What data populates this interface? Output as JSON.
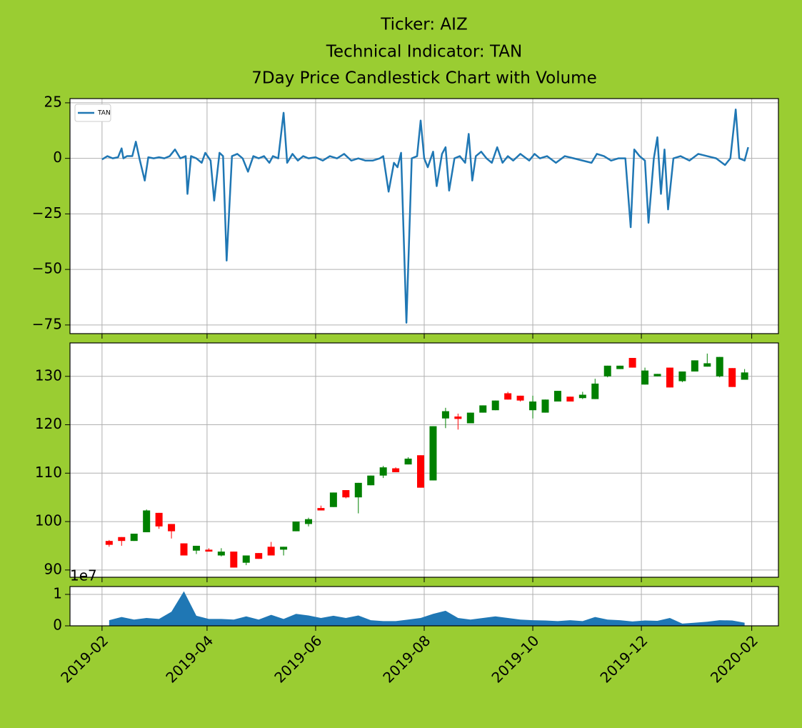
{
  "chart_data": [
    {
      "type": "line",
      "title": [
        "Ticker: AIZ",
        "Technical Indicator: TAN",
        "7Day Price Candlestick Chart with Volume"
      ],
      "series": [
        {
          "name": "TAN",
          "color": "#1f77b4",
          "x": [
            "2019-02-01",
            "2019-02-04",
            "2019-02-07",
            "2019-02-10",
            "2019-02-12",
            "2019-02-13",
            "2019-02-15",
            "2019-02-18",
            "2019-02-20",
            "2019-02-22",
            "2019-02-25",
            "2019-02-27",
            "2019-03-02",
            "2019-03-05",
            "2019-03-08",
            "2019-03-11",
            "2019-03-14",
            "2019-03-17",
            "2019-03-20",
            "2019-03-21",
            "2019-03-23",
            "2019-03-26",
            "2019-03-29",
            "2019-03-31",
            "2019-04-03",
            "2019-04-05",
            "2019-04-08",
            "2019-04-10",
            "2019-04-12",
            "2019-04-15",
            "2019-04-18",
            "2019-04-21",
            "2019-04-24",
            "2019-04-27",
            "2019-04-30",
            "2019-05-03",
            "2019-05-06",
            "2019-05-08",
            "2019-05-11",
            "2019-05-14",
            "2019-05-16",
            "2019-05-19",
            "2019-05-22",
            "2019-05-25",
            "2019-05-28",
            "2019-06-01",
            "2019-06-05",
            "2019-06-09",
            "2019-06-13",
            "2019-06-17",
            "2019-06-21",
            "2019-06-25",
            "2019-06-29",
            "2019-07-03",
            "2019-07-07",
            "2019-07-09",
            "2019-07-12",
            "2019-07-15",
            "2019-07-17",
            "2019-07-19",
            "2019-07-22",
            "2019-07-25",
            "2019-07-28",
            "2019-07-30",
            "2019-08-01",
            "2019-08-03",
            "2019-08-06",
            "2019-08-08",
            "2019-08-11",
            "2019-08-13",
            "2019-08-15",
            "2019-08-18",
            "2019-08-21",
            "2019-08-24",
            "2019-08-26",
            "2019-08-28",
            "2019-08-30",
            "2019-09-02",
            "2019-09-05",
            "2019-09-08",
            "2019-09-11",
            "2019-09-14",
            "2019-09-17",
            "2019-09-20",
            "2019-09-24",
            "2019-09-29",
            "2019-10-02",
            "2019-10-05",
            "2019-10-09",
            "2019-10-14",
            "2019-10-19",
            "2019-10-24",
            "2019-10-29",
            "2019-11-03",
            "2019-11-06",
            "2019-11-10",
            "2019-11-14",
            "2019-11-18",
            "2019-11-22",
            "2019-11-25",
            "2019-11-27",
            "2019-11-30",
            "2019-12-03",
            "2019-12-05",
            "2019-12-08",
            "2019-12-10",
            "2019-12-12",
            "2019-12-14",
            "2019-12-16",
            "2019-12-19",
            "2019-12-23",
            "2019-12-28",
            "2020-01-02",
            "2020-01-07",
            "2020-01-12",
            "2020-01-17",
            "2020-01-20",
            "2020-01-23",
            "2020-01-25",
            "2020-01-28",
            "2020-01-30"
          ],
          "values": [
            -0.5,
            1,
            0,
            0.5,
            4.5,
            0,
            1,
            1,
            7.5,
            0,
            -10,
            0.5,
            0,
            0.5,
            0,
            1,
            4,
            0,
            1,
            -16,
            1,
            0,
            -2,
            2.5,
            -1,
            -19,
            2.5,
            1,
            -46,
            1,
            2,
            0,
            -6,
            1,
            0,
            1,
            -2,
            1,
            0,
            20.5,
            -2,
            2,
            -1,
            1,
            0,
            0.5,
            -1,
            1,
            0,
            2,
            -1,
            0,
            -1,
            -1,
            0,
            1,
            -15,
            -2,
            -4,
            2.5,
            -74,
            0,
            1,
            17,
            0,
            -4,
            3,
            -12.5,
            2,
            5,
            -14.5,
            0,
            1,
            -2,
            11,
            -10,
            1,
            3,
            0,
            -2,
            5,
            -2,
            1,
            -1,
            2,
            -1,
            2,
            0,
            1,
            -2,
            1,
            0,
            -1,
            -2,
            2,
            1,
            -1,
            0,
            0,
            -31,
            4,
            1,
            -1,
            -29,
            0,
            9.5,
            -16,
            4,
            -23,
            0,
            1,
            -1,
            2,
            1,
            0,
            -3,
            0,
            22,
            0,
            -1,
            5
          ]
        }
      ],
      "ylim": [
        -78.9,
        26.9
      ],
      "yticks": [
        25,
        0,
        {
          "value": -25,
          "label": "−25"
        },
        {
          "value": -50,
          "label": "−50"
        },
        {
          "value": -75,
          "label": "−75"
        }
      ],
      "xlim": [
        "2019-01-14",
        "2020-02-16"
      ],
      "xticks": [
        "2019-02",
        "2019-04",
        "2019-06",
        "2019-08",
        "2019-10",
        "2019-12",
        "2020-02"
      ],
      "grid": true,
      "legend": "upper left"
    },
    {
      "type": "candlestick",
      "x": [
        "2019-02-05",
        "2019-02-12",
        "2019-02-19",
        "2019-02-26",
        "2019-03-05",
        "2019-03-12",
        "2019-03-19",
        "2019-03-26",
        "2019-04-02",
        "2019-04-09",
        "2019-04-16",
        "2019-04-23",
        "2019-04-30",
        "2019-05-07",
        "2019-05-14",
        "2019-05-21",
        "2019-05-28",
        "2019-06-04",
        "2019-06-11",
        "2019-06-18",
        "2019-06-25",
        "2019-07-02",
        "2019-07-09",
        "2019-07-16",
        "2019-07-23",
        "2019-07-30",
        "2019-08-06",
        "2019-08-13",
        "2019-08-20",
        "2019-08-27",
        "2019-09-03",
        "2019-09-10",
        "2019-09-17",
        "2019-09-24",
        "2019-10-01",
        "2019-10-08",
        "2019-10-15",
        "2019-10-22",
        "2019-10-29",
        "2019-11-05",
        "2019-11-12",
        "2019-11-19",
        "2019-11-26",
        "2019-12-03",
        "2019-12-10",
        "2019-12-17",
        "2019-12-24",
        "2019-12-31",
        "2020-01-07",
        "2020-01-14",
        "2020-01-21",
        "2020-01-28"
      ],
      "open": [
        96,
        96.8,
        96,
        97.8,
        101.8,
        99.5,
        95.5,
        94,
        94.2,
        93,
        93.8,
        91.5,
        93.5,
        94.8,
        94.2,
        98,
        99.5,
        102.8,
        103,
        106.5,
        105,
        107.5,
        109.5,
        111,
        111.8,
        113.7,
        108.5,
        121.3,
        121.7,
        120.3,
        122.5,
        123,
        126.5,
        126,
        123,
        122.5,
        124.8,
        125.8,
        125.5,
        125.3,
        130,
        131.5,
        133.8,
        128.3,
        130,
        131.8,
        129,
        131,
        132,
        130,
        131.7,
        129.3
      ],
      "high": [
        96.2,
        96.8,
        97.5,
        102.5,
        101.8,
        99.5,
        95.5,
        95,
        94.5,
        94.5,
        93.8,
        93,
        93.5,
        95.8,
        94.8,
        100,
        100.8,
        103.3,
        106,
        106.5,
        108,
        109.5,
        111.5,
        111.2,
        113.3,
        113.7,
        119.7,
        123.5,
        122.3,
        122.5,
        124,
        125,
        126.8,
        126,
        126,
        125.2,
        127,
        125.8,
        126.8,
        129.5,
        132.2,
        132.2,
        133.8,
        131.8,
        130.5,
        131.8,
        131,
        133.3,
        134.7,
        134,
        131.7,
        131.5
      ],
      "low": [
        94.8,
        95,
        96,
        97.8,
        98.5,
        96.5,
        93,
        93.3,
        93.8,
        92.8,
        90.5,
        91,
        92.3,
        93,
        93,
        98,
        99,
        102.3,
        103,
        104.8,
        101.7,
        107.5,
        109,
        110.2,
        111.8,
        107,
        108.5,
        119.3,
        119,
        120.3,
        122.5,
        123,
        125.2,
        124.8,
        121.3,
        122.5,
        124.8,
        124.8,
        125.3,
        125.3,
        129.8,
        131.5,
        131.8,
        128.3,
        130,
        127.7,
        128.8,
        131,
        132,
        129.8,
        127.8,
        129.3
      ],
      "close": [
        95.2,
        96,
        97.5,
        102.3,
        99,
        98,
        93,
        95,
        93.8,
        93.8,
        90.5,
        93,
        92.3,
        93,
        94.8,
        100,
        100.5,
        102.3,
        106,
        105,
        108,
        109.5,
        111.2,
        110.2,
        113,
        107,
        119.7,
        122.8,
        121.2,
        122.5,
        124,
        125,
        125.2,
        125,
        124.8,
        125.2,
        127,
        124.8,
        126.2,
        128.5,
        132.2,
        132.2,
        131.8,
        131.2,
        130.5,
        127.7,
        131,
        133.3,
        132.7,
        134,
        127.8,
        130.8
      ],
      "up_color": "#008000",
      "down_color": "#ff0000",
      "ylim": [
        88.5,
        136.9
      ],
      "yticks": [
        90,
        100,
        110,
        120,
        130
      ],
      "xlim": [
        "2019-01-14",
        "2020-02-16"
      ],
      "xticks": [
        "2019-02",
        "2019-04",
        "2019-06",
        "2019-08",
        "2019-10",
        "2019-12",
        "2020-02"
      ],
      "grid": true
    },
    {
      "type": "area",
      "x": [
        "2019-02-05",
        "2019-02-12",
        "2019-02-19",
        "2019-02-26",
        "2019-03-05",
        "2019-03-12",
        "2019-03-19",
        "2019-03-26",
        "2019-04-02",
        "2019-04-09",
        "2019-04-16",
        "2019-04-23",
        "2019-04-30",
        "2019-05-07",
        "2019-05-14",
        "2019-05-21",
        "2019-05-28",
        "2019-06-04",
        "2019-06-11",
        "2019-06-18",
        "2019-06-25",
        "2019-07-02",
        "2019-07-09",
        "2019-07-16",
        "2019-07-23",
        "2019-07-30",
        "2019-08-06",
        "2019-08-13",
        "2019-08-20",
        "2019-08-27",
        "2019-09-03",
        "2019-09-10",
        "2019-09-17",
        "2019-09-24",
        "2019-10-01",
        "2019-10-08",
        "2019-10-15",
        "2019-10-22",
        "2019-10-29",
        "2019-11-05",
        "2019-11-12",
        "2019-11-19",
        "2019-11-26",
        "2019-12-03",
        "2019-12-10",
        "2019-12-17",
        "2019-12-24",
        "2019-12-31",
        "2020-01-07",
        "2020-01-14",
        "2020-01-21",
        "2020-01-28"
      ],
      "values": [
        1800000,
        2800000,
        2000000,
        2500000,
        2200000,
        4500000,
        11000000,
        3200000,
        2200000,
        2200000,
        2000000,
        3000000,
        2000000,
        3500000,
        2200000,
        3800000,
        3300000,
        2500000,
        3200000,
        2500000,
        3300000,
        1800000,
        1500000,
        1500000,
        2000000,
        2500000,
        3800000,
        4800000,
        2500000,
        2000000,
        2500000,
        3000000,
        2500000,
        2000000,
        1800000,
        1700000,
        1500000,
        1800000,
        1500000,
        2800000,
        2000000,
        1800000,
        1400000,
        1700000,
        1600000,
        2500000,
        700000,
        1000000,
        1300000,
        1800000,
        1700000,
        1000000
      ],
      "color": "#1f77b4",
      "ylim": [
        0,
        12500000
      ],
      "yticks": [
        0,
        {
          "value": 10000000,
          "label": "1"
        }
      ],
      "offset_text": "1e7",
      "xlim": [
        "2019-01-14",
        "2020-02-16"
      ],
      "xticks": [
        "2019-02",
        "2019-04",
        "2019-06",
        "2019-08",
        "2019-10",
        "2019-12",
        "2020-02"
      ],
      "grid": true
    }
  ]
}
